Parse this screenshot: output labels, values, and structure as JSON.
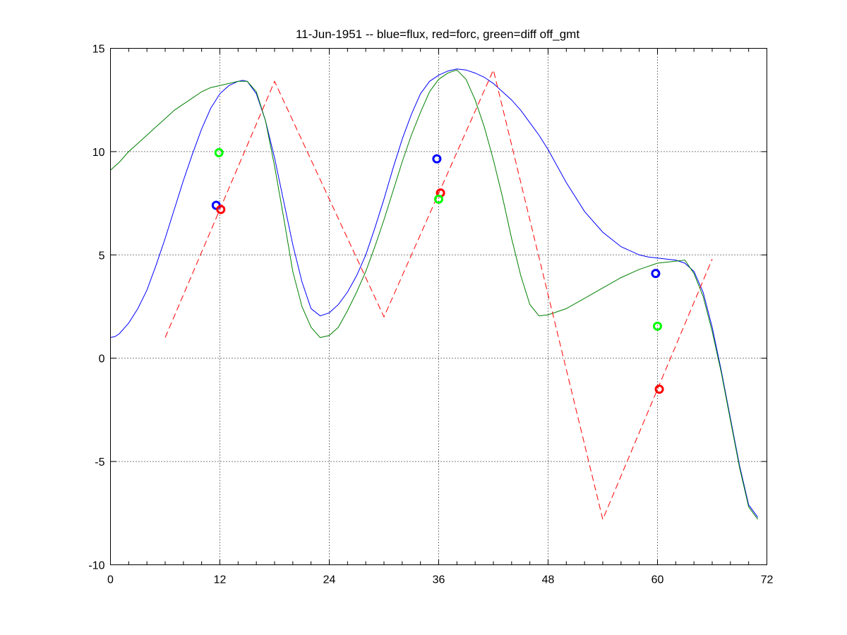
{
  "chart_data": {
    "type": "line",
    "title": "11-Jun-1951 -- blue=flux, red=forc, green=diff off_gmt",
    "xlim": [
      0,
      72
    ],
    "ylim": [
      -10,
      15
    ],
    "xticks": [
      0,
      12,
      24,
      36,
      48,
      60,
      72
    ],
    "yticks": [
      -10,
      -5,
      0,
      5,
      10,
      15
    ],
    "x_minor_ticks": [
      2,
      4,
      6,
      8,
      10,
      14,
      16,
      18,
      20,
      22,
      26,
      28,
      30,
      32,
      34,
      38,
      40,
      42,
      44,
      46,
      50,
      52,
      54,
      56,
      58,
      62,
      64,
      66,
      68,
      70
    ],
    "grid": true,
    "series": [
      {
        "color": "#0000ff",
        "style": "solid",
        "x": [
          0,
          0.5,
          1,
          2,
          3,
          4,
          5,
          6,
          7,
          8,
          9,
          10,
          11,
          12,
          13,
          14,
          14.5,
          15,
          16,
          17,
          18,
          19,
          20,
          21,
          22,
          23,
          24,
          25,
          26,
          27,
          28,
          29,
          30,
          31,
          32,
          33,
          34,
          35,
          36,
          37,
          38,
          39,
          40,
          41,
          42,
          43,
          44,
          45,
          46,
          47,
          48,
          50,
          52,
          54,
          56,
          58,
          59,
          60,
          61,
          62,
          63,
          64,
          65,
          66,
          67,
          68,
          69,
          70,
          71
        ],
        "y": [
          1.0,
          1.05,
          1.2,
          1.7,
          2.4,
          3.3,
          4.5,
          5.8,
          7.2,
          8.6,
          9.9,
          11.1,
          12.1,
          12.8,
          13.2,
          13.4,
          13.45,
          13.4,
          12.8,
          11.5,
          9.7,
          7.6,
          5.5,
          3.7,
          2.4,
          2.05,
          2.2,
          2.6,
          3.2,
          4.0,
          5.0,
          6.3,
          7.7,
          9.2,
          10.6,
          11.8,
          12.8,
          13.4,
          13.7,
          13.9,
          14.0,
          13.95,
          13.8,
          13.6,
          13.3,
          12.9,
          12.5,
          12.0,
          11.4,
          10.8,
          10.1,
          8.5,
          7.1,
          6.1,
          5.4,
          5.0,
          4.9,
          4.85,
          4.8,
          4.75,
          4.6,
          4.2,
          3.2,
          1.5,
          -0.6,
          -2.9,
          -5.2,
          -7.1,
          -7.7
        ]
      },
      {
        "color": "#008000",
        "style": "solid",
        "x": [
          0,
          1,
          2,
          3,
          4,
          5,
          6,
          7,
          8,
          9,
          10,
          11,
          12,
          13,
          14,
          15,
          16,
          17,
          18,
          19,
          20,
          21,
          22,
          23,
          24,
          25,
          26,
          27,
          28,
          29,
          30,
          31,
          32,
          33,
          34,
          35,
          36,
          37,
          38,
          39,
          40,
          41,
          42,
          43,
          44,
          45,
          46,
          47,
          48,
          50,
          52,
          54,
          56,
          58,
          60,
          62,
          63,
          64,
          65,
          66,
          67,
          68,
          69,
          70,
          71
        ],
        "y": [
          9.1,
          9.5,
          10.0,
          10.4,
          10.8,
          11.2,
          11.6,
          12.0,
          12.3,
          12.6,
          12.9,
          13.1,
          13.2,
          13.3,
          13.4,
          13.4,
          12.9,
          11.5,
          9.3,
          6.8,
          4.2,
          2.5,
          1.5,
          1.0,
          1.1,
          1.5,
          2.3,
          3.2,
          4.2,
          5.4,
          6.7,
          8.1,
          9.5,
          10.8,
          11.9,
          12.9,
          13.5,
          13.8,
          13.95,
          13.5,
          12.5,
          11.2,
          9.6,
          7.8,
          5.8,
          4.0,
          2.6,
          2.05,
          2.1,
          2.4,
          2.9,
          3.4,
          3.9,
          4.3,
          4.6,
          4.7,
          4.75,
          4.1,
          3.0,
          1.3,
          -0.7,
          -3.0,
          -5.3,
          -7.2,
          -7.8
        ]
      },
      {
        "color": "#ff0000",
        "style": "dashed",
        "x": [
          6,
          18,
          30,
          42,
          54,
          66
        ],
        "y": [
          1.0,
          13.4,
          2.0,
          13.95,
          -7.8,
          4.8
        ]
      }
    ],
    "markers": [
      {
        "color": "#0000ff",
        "x": 11.6,
        "y": 7.4
      },
      {
        "color": "#ff0000",
        "x": 12.1,
        "y": 7.2
      },
      {
        "color": "#00ff00",
        "x": 11.9,
        "y": 9.95
      },
      {
        "color": "#0000ff",
        "x": 35.8,
        "y": 9.65
      },
      {
        "color": "#ff0000",
        "x": 36.2,
        "y": 8.0
      },
      {
        "color": "#00ff00",
        "x": 36.0,
        "y": 7.7
      },
      {
        "color": "#0000ff",
        "x": 59.8,
        "y": 4.1
      },
      {
        "color": "#00ff00",
        "x": 60.0,
        "y": 1.55
      },
      {
        "color": "#ff0000",
        "x": 60.2,
        "y": -1.5
      }
    ]
  }
}
